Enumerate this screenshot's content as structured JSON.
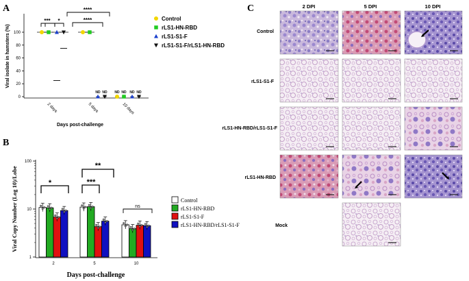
{
  "panels": {
    "a": "A",
    "b": "B",
    "c": "C"
  },
  "chart_data": [
    {
      "type": "scatter",
      "panel": "A",
      "ylabel": "Viral isolate in hamsters (%)",
      "xlabel": "Days post-challenge",
      "categories": [
        "2 days",
        "5 days",
        "10 days"
      ],
      "yticks": [
        "0",
        "20",
        "40",
        "60",
        "80",
        "100"
      ],
      "ylim": [
        0,
        100
      ],
      "series": [
        {
          "name": "Control",
          "color": "#f2d600",
          "marker": "circle",
          "values": [
            100,
            100,
            0
          ],
          "labels": [
            "",
            "",
            "ND"
          ]
        },
        {
          "name": "rLS1-HN-RBD",
          "color": "#22cc22",
          "marker": "square",
          "values": [
            100,
            100,
            0
          ],
          "labels": [
            "",
            "",
            "ND"
          ]
        },
        {
          "name": "rLS1-S1-F",
          "color": "#1a3fcc",
          "marker": "triangle-up",
          "values": [
            100,
            0,
            0
          ],
          "labels": [
            "",
            "ND",
            "ND"
          ]
        },
        {
          "name": "rLS1-S1-F/rLS1-HN-RBD",
          "color": "#111111",
          "marker": "triangle-down",
          "values": [
            100,
            0,
            0
          ],
          "labels": [
            "",
            "ND",
            "ND"
          ]
        }
      ],
      "extra_points": [
        {
          "series": "rLS1-S1-F",
          "category": "2 days",
          "value": 25
        },
        {
          "series": "rLS1-S1-F/rLS1-HN-RBD",
          "category": "2 days",
          "value": 75
        }
      ],
      "significance": [
        "***",
        "*",
        "****",
        "****"
      ],
      "legend_position": "right"
    },
    {
      "type": "bar",
      "panel": "B",
      "ylabel": "Viral Copy Number (Log 10)/Lobe",
      "xlabel": "Days post-challenge",
      "yscale": "log",
      "ylim": [
        1,
        100
      ],
      "yticks": [
        "1",
        "10",
        "100"
      ],
      "categories": [
        "2",
        "5",
        "10"
      ],
      "series": [
        {
          "name": "Control",
          "color": "#ffffff",
          "values": [
            10.8,
            11.0,
            4.7
          ]
        },
        {
          "name": "rLS1-HN-RBD",
          "color": "#22aa22",
          "values": [
            10.6,
            11.2,
            3.9
          ]
        },
        {
          "name": "rLS1-S1-F",
          "color": "#e01010",
          "values": [
            6.8,
            4.3,
            4.6
          ]
        },
        {
          "name": "rLS1-HN-RBD/rLS1-S1-F",
          "color": "#1010c0",
          "values": [
            9.3,
            5.6,
            4.5
          ]
        }
      ],
      "significance": [
        "*",
        "**",
        "***",
        "ns"
      ],
      "legend_position": "right"
    }
  ],
  "panelC": {
    "columns": [
      "2 DPI",
      "5 DPI",
      "10 DPI"
    ],
    "rows": [
      "Control",
      "rLS1-S1-F",
      "rLS1-HN-RBD/rLS1-S1-F",
      "rLS1-HN-RBD",
      "Mock"
    ]
  }
}
